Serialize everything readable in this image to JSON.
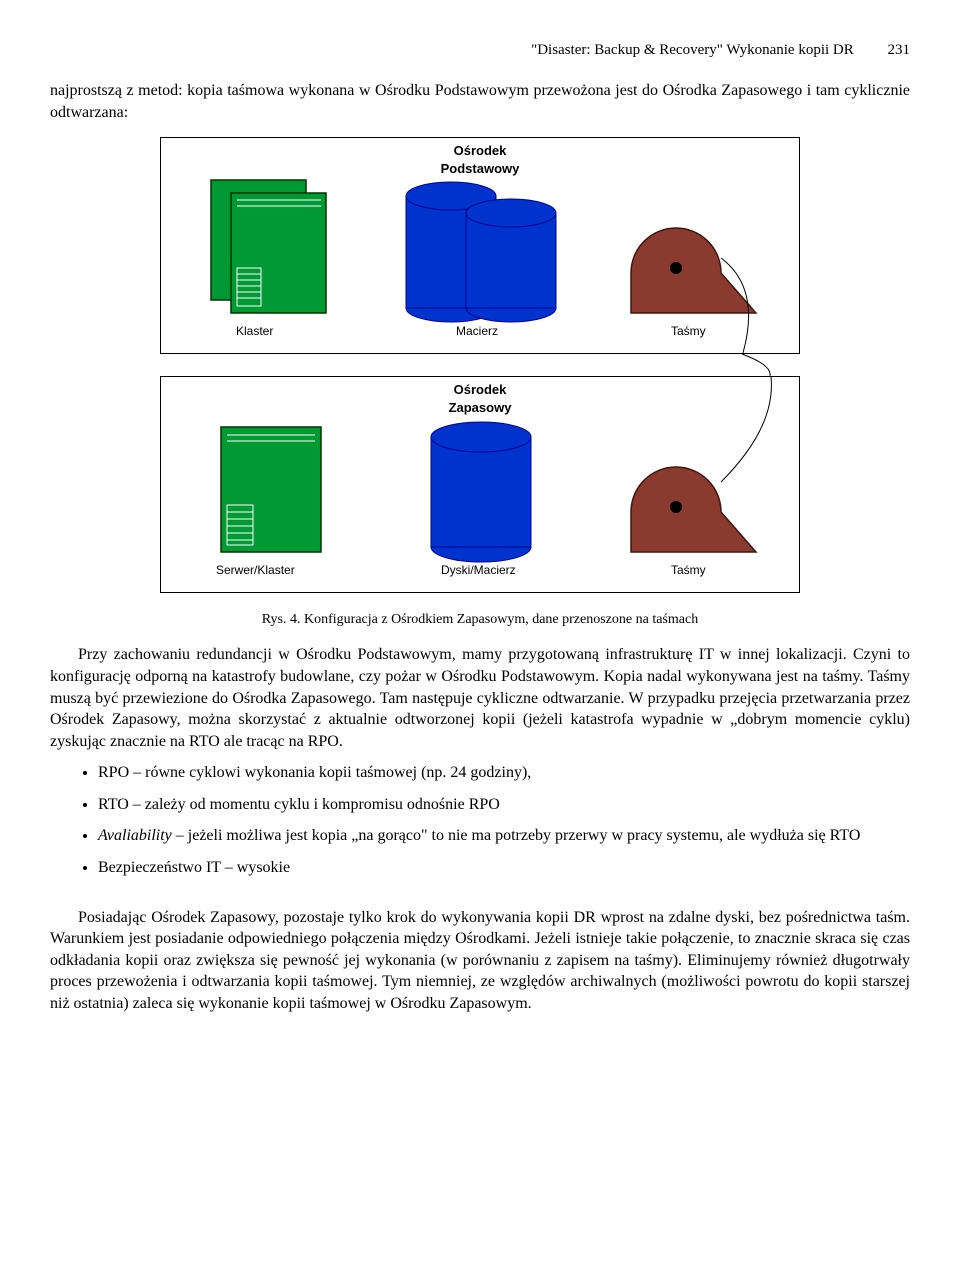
{
  "header": {
    "title": "\"Disaster: Backup & Recovery\" Wykonanie kopii DR",
    "page": "231"
  },
  "intro": "najprostszą z metod: kopia taśmowa wykonana w Ośrodku Podstawowym przewożona jest do Ośrodka Zapasowego i tam cyklicznie odtwarzana:",
  "diagram": {
    "border_color": "#000000",
    "curve_color": "#000000",
    "box1": {
      "title": "Ośrodek\nPodstawowy",
      "labels": [
        "Klaster",
        "Macierz",
        "Taśmy"
      ],
      "server": {
        "fill": "#009933",
        "stroke": "#003300"
      },
      "cylinder": {
        "fill": "#0033cc",
        "stroke": "#000099"
      },
      "tape": {
        "fill": "#8b3a2f",
        "stroke": "#3d1710"
      }
    },
    "box2": {
      "title": "Ośrodek\nZapasowy",
      "labels": [
        "Serwer/Klaster",
        "Dyski/Macierz",
        "Taśmy"
      ],
      "server": {
        "fill": "#009933",
        "stroke": "#003300"
      },
      "cylinder": {
        "fill": "#0033cc",
        "stroke": "#000099"
      },
      "tape": {
        "fill": "#8b3a2f",
        "stroke": "#3d1710"
      }
    }
  },
  "caption": "Rys. 4. Konfiguracja z Ośrodkiem Zapasowym, dane przenoszone na taśmach",
  "para2": "Przy zachowaniu redundancji w Ośrodku Podstawowym, mamy przygotowaną infrastrukturę IT w innej lokalizacji. Czyni to konfigurację odporną na katastrofy budowlane, czy pożar w Ośrodku Podstawowym. Kopia nadal wykonywana jest na taśmy. Taśmy muszą być przewiezione do Ośrodka Zapasowego. Tam następuje cykliczne odtwarzanie. W przypadku przejęcia przetwarzania przez Ośrodek Zapasowy, można skorzystać z aktualnie odtworzonej kopii (jeżeli katastrofa wypadnie w „dobrym momencie cyklu) zyskując znacznie na RTO ale tracąc na RPO.",
  "bullets": [
    "RPO – równe cyklowi wykonania kopii taśmowej (np. 24 godziny),",
    "RTO – zależy od momentu cyklu i kompromisu odnośnie RPO",
    "<i>Avaliability</i> – jeżeli możliwa jest kopia „na gorąco\" to nie ma potrzeby przerwy w pracy systemu, ale wydłuża się RTO",
    "Bezpieczeństwo IT – wysokie"
  ],
  "para3": "Posiadając Ośrodek Zapasowy, pozostaje tylko krok do wykonywania kopii DR wprost na zdalne dyski, bez pośrednictwa taśm. Warunkiem jest posiadanie odpowiedniego połączenia między Ośrodkami. Jeżeli istnieje takie połączenie, to znacznie skraca się czas odkładania kopii oraz zwiększa się pewność jej wykonania (w porównaniu z zapisem na taśmy). Eliminujemy również długotrwały proces przewożenia i odtwarzania kopii taśmowej. Tym niemniej, ze względów archiwalnych (możliwości powrotu do kopii starszej niż ostatnia) zaleca się wykonanie kopii taśmowej w Ośrodku Zapasowym."
}
